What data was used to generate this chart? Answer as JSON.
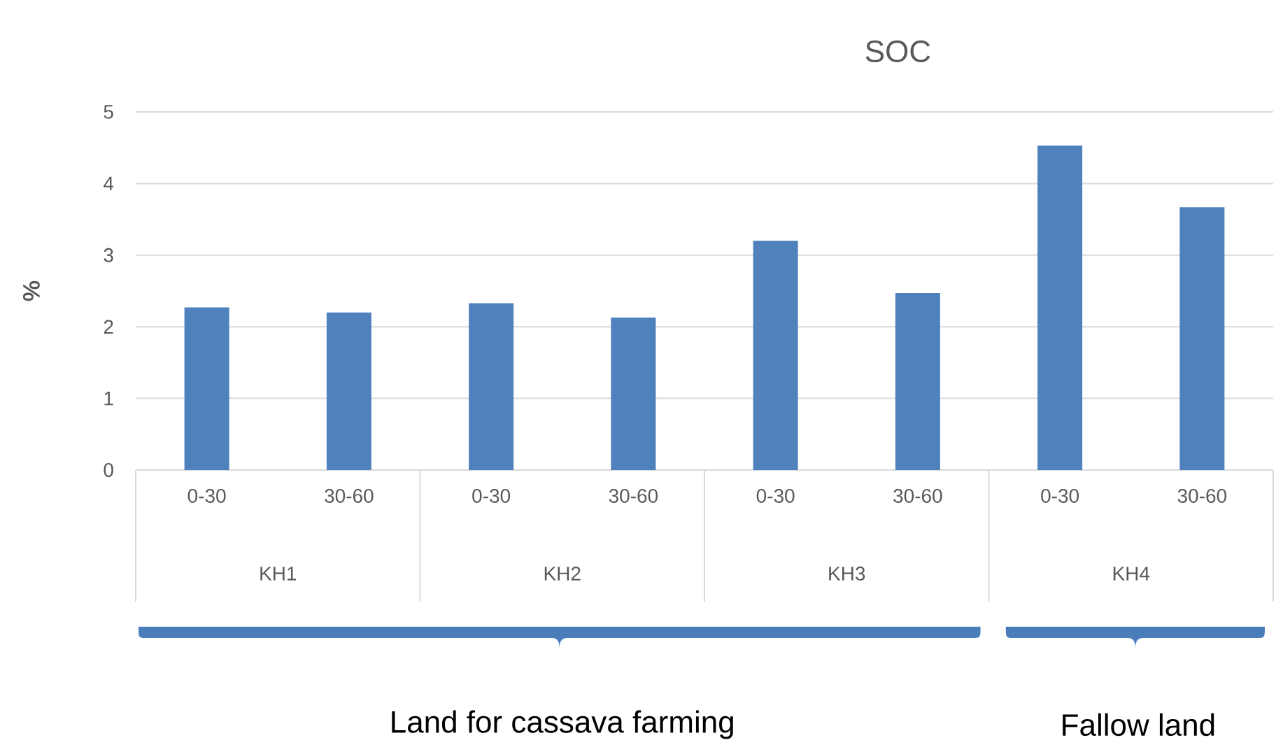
{
  "chart_data": {
    "type": "bar",
    "title": "SOC",
    "ylabel": "%",
    "categories": [
      "0-30",
      "30-60",
      "0-30",
      "30-60",
      "0-30",
      "30-60",
      "0-30",
      "30-60"
    ],
    "values": [
      2.27,
      2.2,
      2.33,
      2.13,
      3.2,
      2.47,
      4.53,
      3.67
    ],
    "color": "#4f81bd",
    "ylim": [
      0,
      5
    ],
    "yticks": [
      0,
      1,
      2,
      3,
      4,
      5
    ],
    "grid": "y",
    "annotations": [
      "KH1",
      "KH2",
      "KH3",
      "KH4",
      "Land for cassava farming",
      "Fallow land"
    ]
  }
}
